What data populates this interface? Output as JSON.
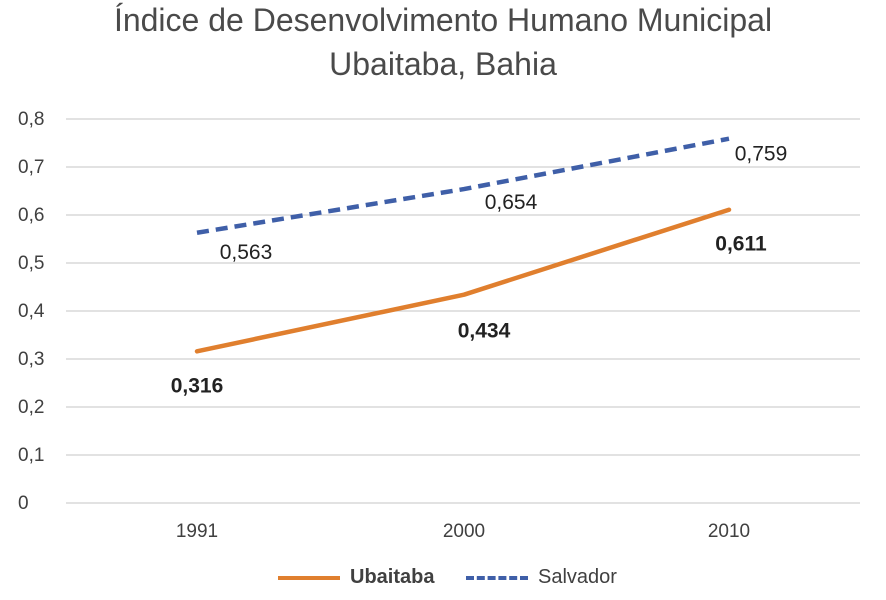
{
  "chart_data": {
    "type": "line",
    "title": "Índice de Desenvolvimento Humano Municipal",
    "subtitle": "Ubaitaba, Bahia",
    "categories": [
      "1991",
      "2000",
      "2010"
    ],
    "y_ticks": [
      "0",
      "0,1",
      "0,2",
      "0,3",
      "0,4",
      "0,5",
      "0,6",
      "0,7",
      "0,8"
    ],
    "ylim": [
      0,
      0.8
    ],
    "grid": true,
    "legend_position": "bottom",
    "series": [
      {
        "name": "Ubaitaba",
        "values": [
          0.316,
          0.434,
          0.611
        ],
        "labels": [
          "0,316",
          "0,434",
          "0,611"
        ],
        "color": "#E07F2E",
        "style": "solid",
        "label_bold": true
      },
      {
        "name": "Salvador",
        "values": [
          0.563,
          0.654,
          0.759
        ],
        "labels": [
          "0,563",
          "0,654",
          "0,759"
        ],
        "color": "#3F5FA8",
        "style": "dashed",
        "label_bold": false
      }
    ]
  }
}
